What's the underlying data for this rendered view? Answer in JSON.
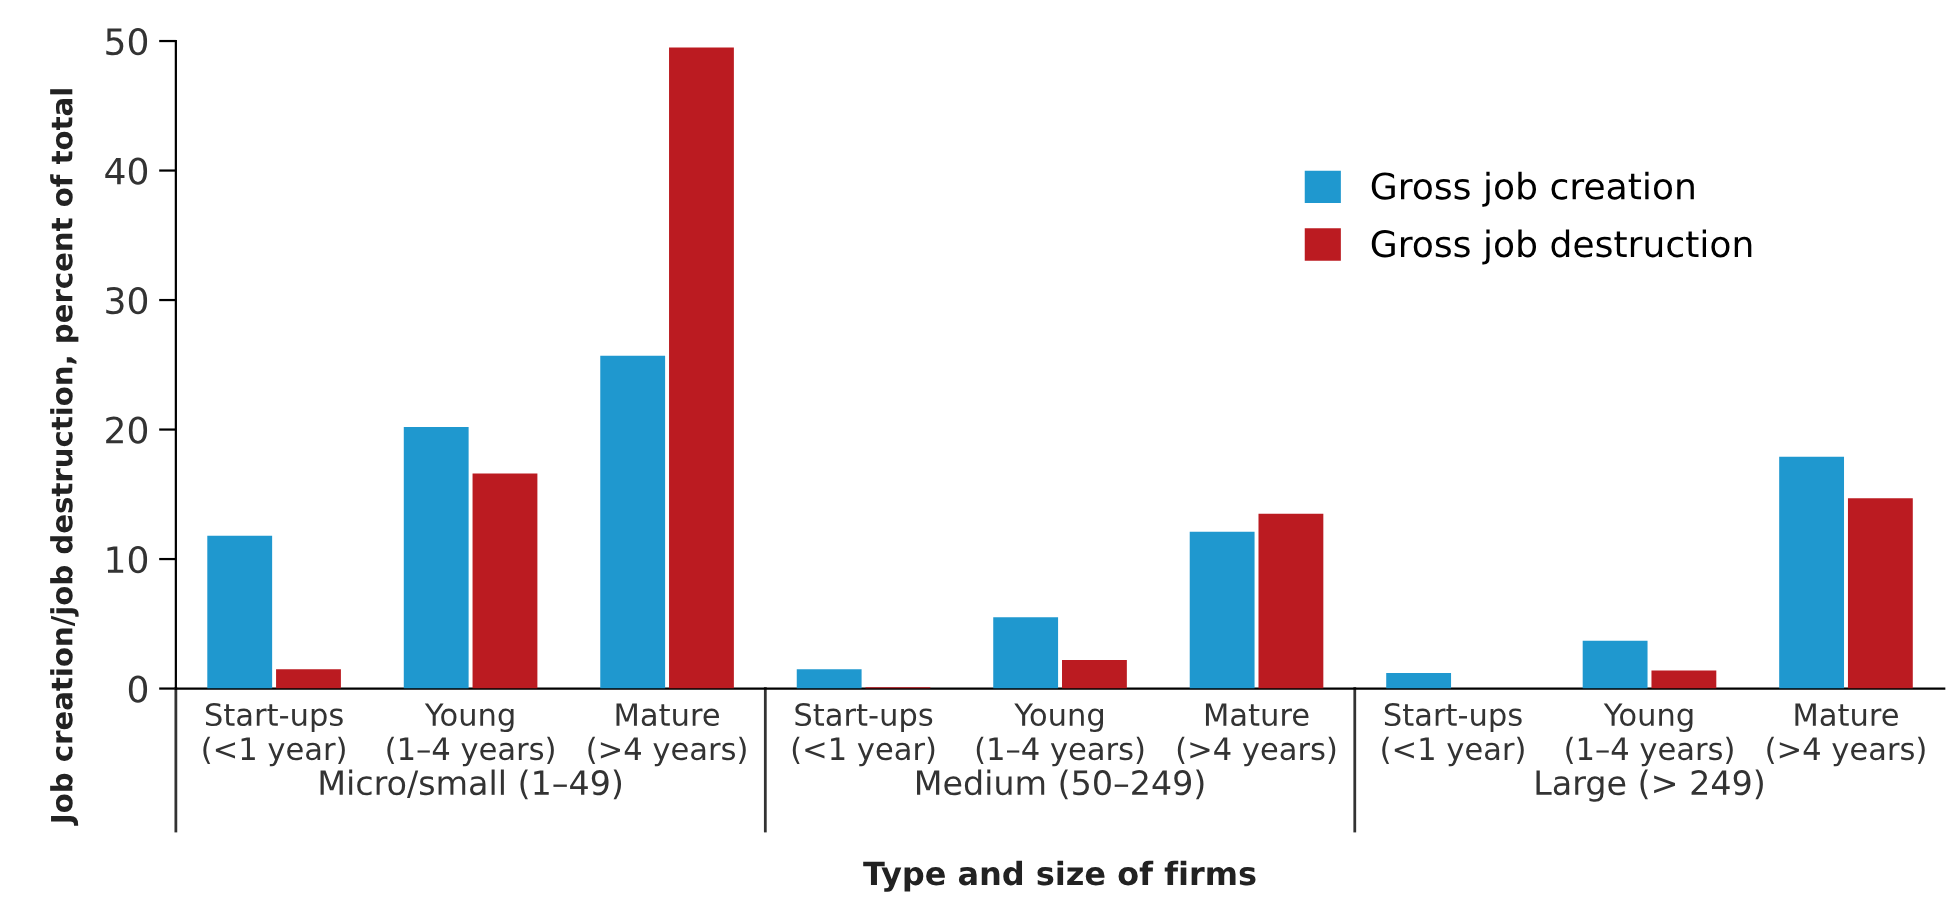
{
  "chart_data": {
    "type": "bar",
    "xlabel": "Type and size of firms",
    "ylabel": "Job creation/job destruction, percent of total",
    "categories": [
      "Start-ups\n(<1 year)",
      "Young\n(1–4 years)",
      "Mature\n(>4 years)",
      "Start-ups\n(<1 year)",
      "Young\n(1–4 years)",
      "Mature\n(>4 years)",
      "Start-ups\n(<1 year)",
      "Young\n(1–4 years)",
      "Mature\n(>4 years)"
    ],
    "series": [
      {
        "name": "Gross job creation",
        "color": "#1f98cf",
        "values": [
          11.8,
          20.2,
          25.7,
          1.5,
          5.5,
          12.1,
          1.2,
          3.7,
          17.9
        ]
      },
      {
        "name": "Gross job destruction",
        "color": "#bb1b21",
        "values": [
          1.5,
          16.6,
          49.5,
          0.1,
          2.2,
          13.5,
          0,
          1.4,
          14.7
        ]
      }
    ],
    "annotations": [
      "Micro/small (1–49)",
      "Medium (50–249)",
      "Large (> 249)"
    ],
    "ylim": [
      0,
      50
    ],
    "yticks": [
      0,
      10,
      20,
      30,
      40,
      50
    ],
    "grid": false,
    "legend": "top right"
  }
}
